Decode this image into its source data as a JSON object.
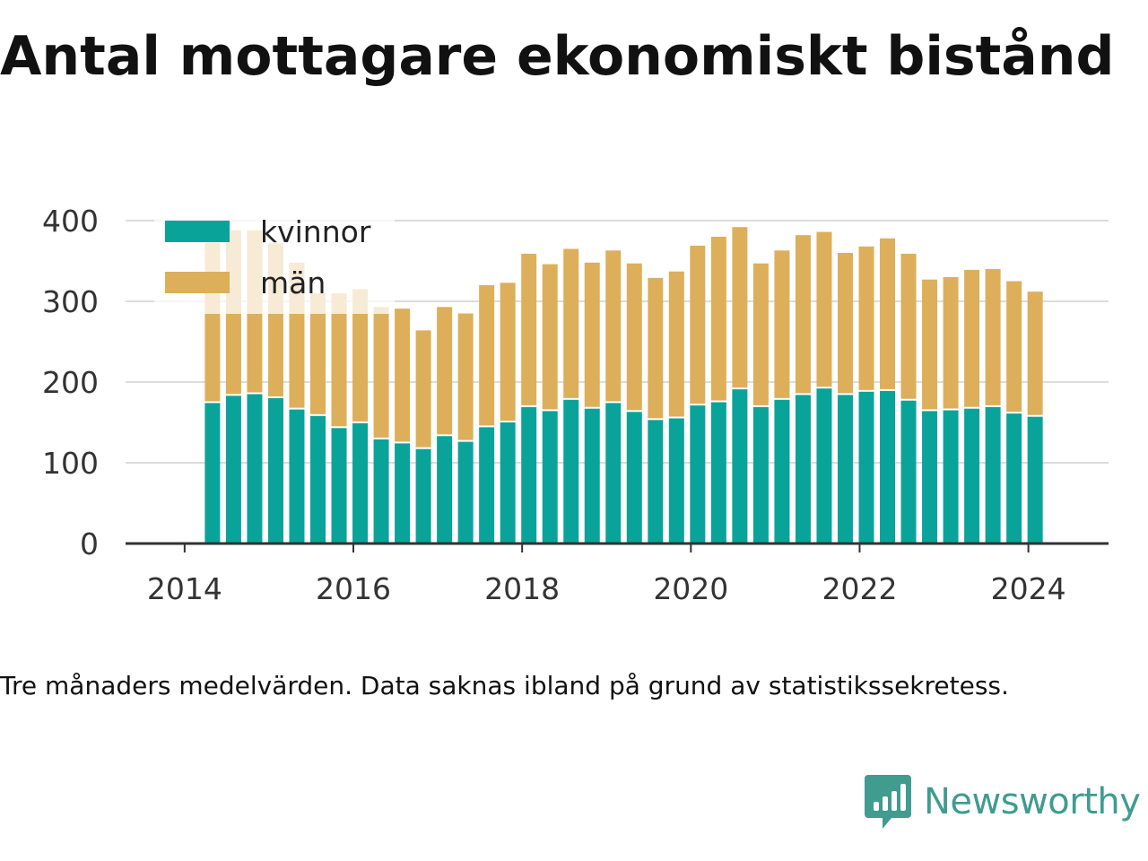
{
  "title": "Antal mottagare ekonomiskt bistånd",
  "note": "Tre månaders medelvärden. Data saknas ibland på grund av statistikssekretess.",
  "brand": {
    "name": "Newsworthy",
    "icon": "newsworthy-logo-icon"
  },
  "colors": {
    "kvinnor": "#0aa39a",
    "man": "#ddaf5a",
    "grid": "#dcdcdc",
    "axis": "#333333"
  },
  "chart_data": {
    "type": "bar",
    "stacked": true,
    "xlabel": "",
    "ylabel": "",
    "ylim": [
      0,
      400
    ],
    "yticks": [
      0,
      100,
      200,
      300,
      400
    ],
    "xlim": [
      2013.3,
      2024.95
    ],
    "xticks": [
      2014,
      2016,
      2018,
      2020,
      2022,
      2024
    ],
    "grid": true,
    "legend_position": "top-left",
    "x": [
      2014.33,
      2014.58,
      2014.83,
      2015.08,
      2015.33,
      2015.58,
      2015.83,
      2016.08,
      2016.33,
      2016.58,
      2016.83,
      2017.08,
      2017.33,
      2017.58,
      2017.83,
      2018.08,
      2018.33,
      2018.58,
      2018.83,
      2019.08,
      2019.33,
      2019.58,
      2019.83,
      2020.08,
      2020.33,
      2020.58,
      2020.83,
      2021.08,
      2021.33,
      2021.58,
      2021.83,
      2022.08,
      2022.33,
      2022.58,
      2022.83,
      2023.08,
      2023.33,
      2023.58,
      2023.83,
      2024.08
    ],
    "series": [
      {
        "name": "kvinnor",
        "values": [
          174,
          183,
          185,
          180,
          166,
          158,
          143,
          149,
          129,
          124,
          117,
          133,
          126,
          144,
          150,
          169,
          164,
          178,
          167,
          174,
          163,
          153,
          155,
          171,
          175,
          191,
          169,
          178,
          184,
          192,
          184,
          188,
          189,
          177,
          164,
          165,
          167,
          169,
          161,
          157
        ]
      },
      {
        "name": "män",
        "values": [
          199,
          205,
          203,
          192,
          182,
          152,
          167,
          166,
          164,
          167,
          147,
          160,
          159,
          176,
          173,
          190,
          182,
          187,
          181,
          189,
          184,
          176,
          182,
          198,
          205,
          201,
          178,
          185,
          198,
          194,
          176,
          180,
          189,
          182,
          163,
          165,
          172,
          171,
          164,
          155
        ]
      }
    ]
  }
}
